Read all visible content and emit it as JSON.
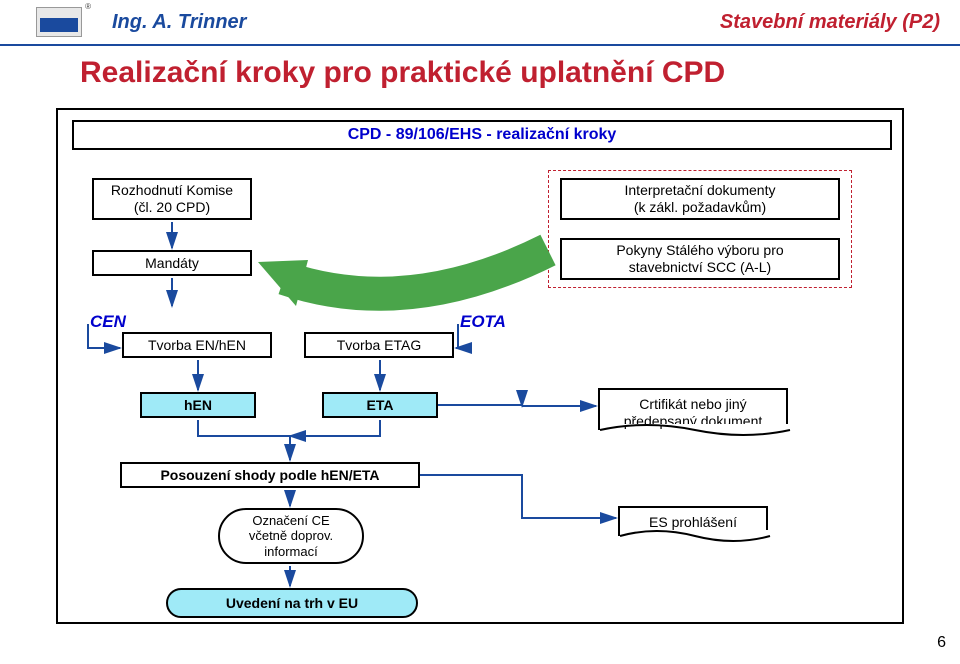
{
  "header": {
    "author": "Ing. A. Trinner",
    "right": "Stavební materiály (P2)"
  },
  "title": "Realizační kroky pro praktické uplatnění CPD",
  "pageNumber": "6",
  "boxes": {
    "topbar": "CPD - 89/106/EHS - realizační kroky",
    "decision": "Rozhodnutí Komise\n(čl. 20 CPD)",
    "mandates": "Mandáty",
    "interp": "Interpretační dokumenty\n(k zákl. požadavkům)",
    "scc": "Pokyny Stálého výboru pro\nstavebnictví SCC (A-L)",
    "cen": "CEN",
    "eota": "EOTA",
    "tvorbaEN": "Tvorba EN/hEN",
    "tvorbaETAG": "Tvorba ETAG",
    "hen": "hEN",
    "eta": "ETA",
    "cert": "Crtifikát nebo jiný\npředepsaný dokument",
    "es": "ES prohlášení",
    "posouzeni": "Posouzení shody podle hEN/ETA",
    "ce": "Označení CE\nvčetně doprov.\ninformací",
    "uvedeni": "Uvedení na trh v EU"
  },
  "colors": {
    "blue": "#1a4a9e",
    "red": "#c02030",
    "cyan": "#9feaf7",
    "greenArrow": "#4aa54a",
    "link": "#0000cc"
  }
}
